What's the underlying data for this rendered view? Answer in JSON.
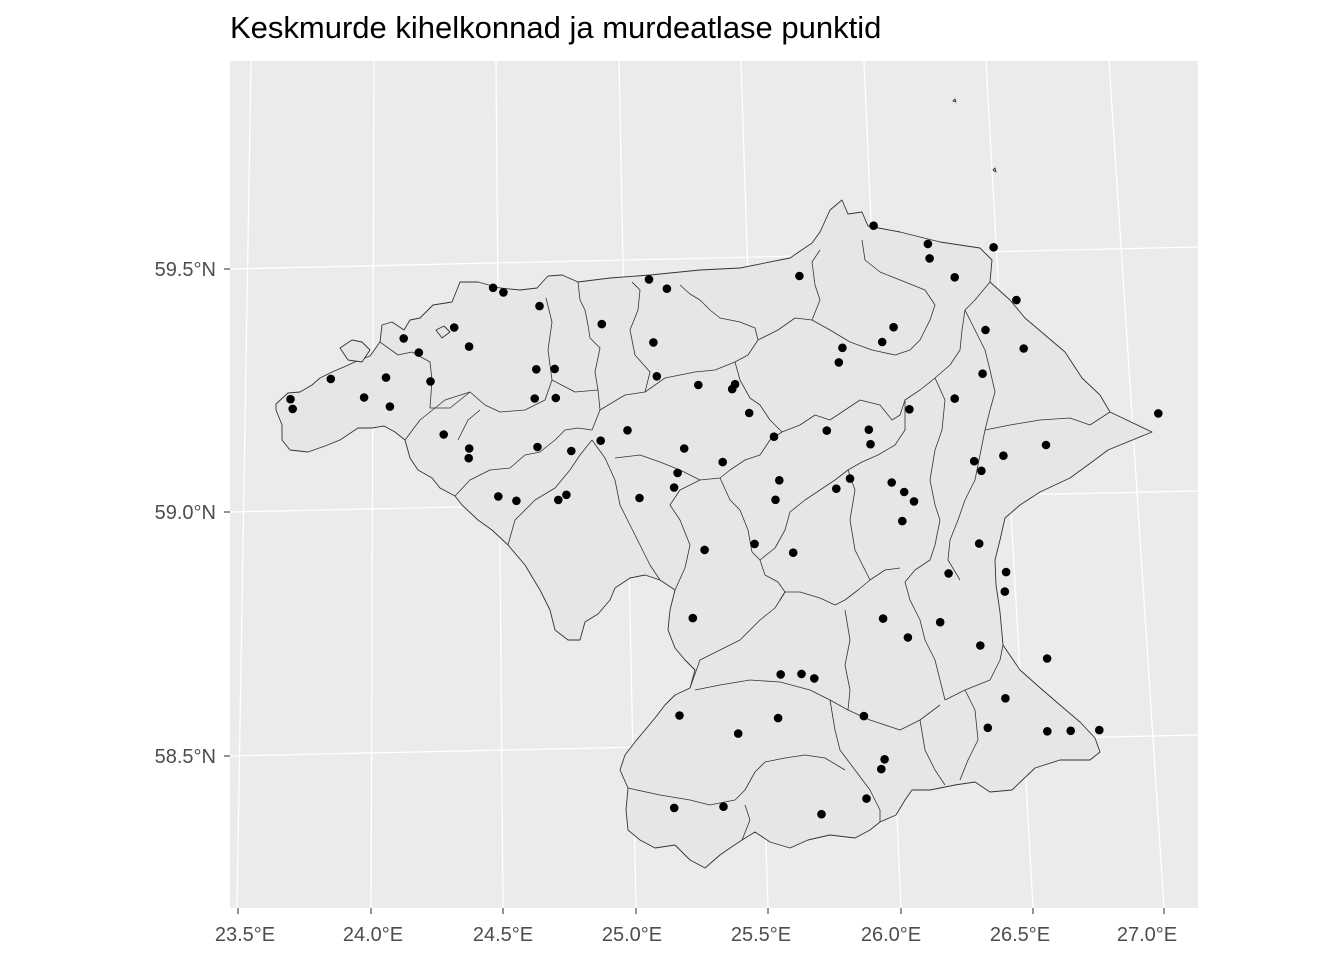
{
  "title": "Keskmurde kihelkonnad ja murdeatlase punktid",
  "axes": {
    "x_ticks": [
      "23.5°E",
      "24.0°E",
      "24.5°E",
      "25.0°E",
      "25.5°E",
      "26.0°E",
      "26.5°E",
      "27.0°E"
    ],
    "y_ticks": [
      "59.5°N",
      "59.0°N",
      "58.5°N"
    ]
  },
  "colors": {
    "panel": "#ebebeb",
    "grid": "#ffffff",
    "region_fill": "#e6e6e6",
    "region_stroke": "#333333",
    "point": "#000000"
  },
  "chart_data": {
    "type": "map",
    "title": "Keskmurde kihelkonnad ja murdeatlase punktid",
    "xlim": [
      23.48,
      27.2
    ],
    "ylim": [
      58.22,
      59.93
    ],
    "grid": true,
    "points": [
      [
        23.67,
        59.23
      ],
      [
        23.68,
        59.21
      ],
      [
        23.82,
        59.27
      ],
      [
        23.95,
        59.23
      ],
      [
        24.03,
        59.27
      ],
      [
        24.05,
        59.21
      ],
      [
        24.09,
        59.35
      ],
      [
        24.15,
        59.32
      ],
      [
        24.2,
        59.26
      ],
      [
        24.26,
        59.15
      ],
      [
        24.28,
        59.37
      ],
      [
        24.34,
        59.33
      ],
      [
        24.36,
        59.12
      ],
      [
        24.36,
        59.1
      ],
      [
        24.42,
        59.45
      ],
      [
        24.46,
        59.44
      ],
      [
        24.48,
        59.02
      ],
      [
        24.55,
        59.01
      ],
      [
        24.6,
        59.41
      ],
      [
        24.6,
        59.28
      ],
      [
        24.6,
        59.22
      ],
      [
        24.62,
        59.12
      ],
      [
        24.67,
        59.28
      ],
      [
        24.68,
        59.22
      ],
      [
        24.71,
        59.01
      ],
      [
        24.74,
        59.02
      ],
      [
        24.75,
        59.11
      ],
      [
        24.84,
        59.37
      ],
      [
        24.86,
        59.13
      ],
      [
        24.96,
        59.15
      ],
      [
        25.01,
        59.46
      ],
      [
        25.02,
        59.01
      ],
      [
        25.04,
        59.33
      ],
      [
        25.06,
        59.26
      ],
      [
        25.08,
        59.44
      ],
      [
        25.15,
        59.03
      ],
      [
        25.16,
        59.06
      ],
      [
        25.18,
        59.11
      ],
      [
        25.22,
        59.24
      ],
      [
        25.25,
        58.76
      ],
      [
        25.28,
        58.9
      ],
      [
        25.33,
        59.08
      ],
      [
        25.35,
        59.23
      ],
      [
        25.36,
        59.24
      ],
      [
        25.42,
        59.18
      ],
      [
        25.47,
        58.91
      ],
      [
        25.52,
        59.13
      ],
      [
        25.54,
        59.0
      ],
      [
        25.55,
        59.04
      ],
      [
        25.58,
        59.46
      ],
      [
        25.6,
        58.64
      ],
      [
        25.62,
        58.89
      ],
      [
        25.68,
        58.64
      ],
      [
        25.72,
        59.14
      ],
      [
        25.73,
        58.63
      ],
      [
        25.75,
        59.28
      ],
      [
        25.76,
        59.31
      ],
      [
        25.77,
        59.02
      ],
      [
        25.82,
        59.04
      ],
      [
        25.85,
        59.56
      ],
      [
        25.88,
        59.14
      ],
      [
        25.89,
        59.11
      ],
      [
        25.91,
        59.32
      ],
      [
        25.95,
        59.35
      ],
      [
        25.98,
        59.03
      ],
      [
        26.03,
        59.18
      ],
      [
        26.03,
        59.01
      ],
      [
        26.03,
        58.95
      ],
      [
        26.06,
        59.52
      ],
      [
        26.07,
        59.49
      ],
      [
        26.07,
        58.99
      ],
      [
        25.98,
        58.75
      ],
      [
        26.08,
        58.71
      ],
      [
        26.17,
        59.45
      ],
      [
        26.2,
        59.2
      ],
      [
        26.22,
        58.84
      ],
      [
        26.2,
        58.74
      ],
      [
        26.31,
        59.51
      ],
      [
        26.3,
        59.34
      ],
      [
        26.3,
        59.25
      ],
      [
        26.29,
        59.07
      ],
      [
        26.32,
        59.05
      ],
      [
        26.33,
        58.9
      ],
      [
        26.4,
        59.08
      ],
      [
        26.41,
        59.4
      ],
      [
        26.44,
        58.84
      ],
      [
        26.44,
        58.8
      ],
      [
        26.45,
        59.3
      ],
      [
        26.36,
        58.69
      ],
      [
        26.47,
        58.58
      ],
      [
        26.56,
        59.1
      ],
      [
        26.41,
        58.52
      ],
      [
        26.62,
        58.66
      ],
      [
        26.64,
        58.51
      ],
      [
        26.73,
        58.51
      ],
      [
        26.84,
        58.51
      ],
      [
        26.98,
        59.16
      ],
      [
        25.22,
        58.56
      ],
      [
        25.45,
        58.52
      ],
      [
        25.6,
        58.55
      ],
      [
        25.93,
        58.55
      ],
      [
        26.02,
        58.46
      ],
      [
        26.01,
        58.44
      ],
      [
        25.96,
        58.38
      ],
      [
        25.22,
        58.37
      ],
      [
        25.41,
        58.37
      ],
      [
        25.79,
        58.35
      ]
    ]
  }
}
